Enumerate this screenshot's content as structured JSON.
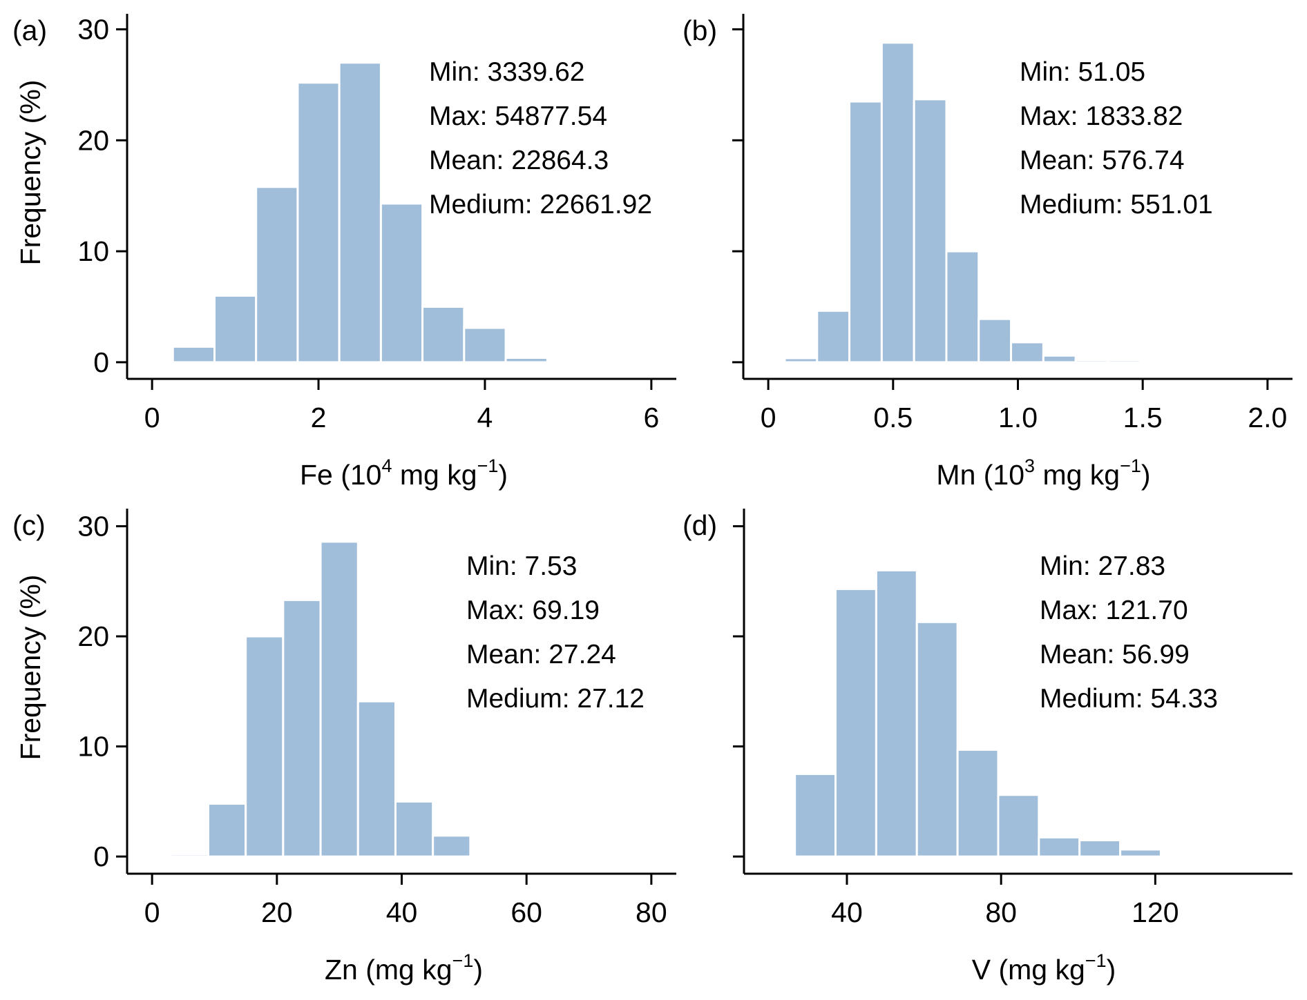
{
  "figure": {
    "bar_color": "#a0bdda",
    "axis_color": "#000000",
    "background": "#ffffff"
  },
  "chart_data": [
    {
      "type": "bar",
      "subtype": "histogram",
      "panel_label": "(a)",
      "xlabel": {
        "prefix": "Fe (10",
        "sup1": "4",
        "mid": " mg kg",
        "sup2": "−1",
        "suffix": ")"
      },
      "ylabel": "Frequency (%)",
      "xlim": [
        -0.3,
        6.3
      ],
      "ylim": [
        -1.5,
        31.4
      ],
      "xticks": [
        0,
        2,
        4,
        6
      ],
      "xtick_labels": [
        "0",
        "2",
        "4",
        "6"
      ],
      "yticks": [
        0,
        10,
        20,
        30
      ],
      "ytick_labels": [
        "0",
        "10",
        "20",
        "30"
      ],
      "show_ytick_labels": true,
      "bin_start": 0.25,
      "bin_width": 0.5,
      "values": [
        1.4,
        6.0,
        15.8,
        25.2,
        27.0,
        14.3,
        5.0,
        3.1,
        0.4
      ],
      "stats": [
        "Min: 3339.62",
        "Max: 54877.54",
        "Mean: 22864.3",
        "Medium: 22661.92"
      ]
    },
    {
      "type": "bar",
      "subtype": "histogram",
      "panel_label": "(b)",
      "xlabel": {
        "prefix": "Mn (10",
        "sup1": "3",
        "mid": " mg kg",
        "sup2": "−1",
        "suffix": ")"
      },
      "ylabel": "",
      "xlim": [
        -0.1,
        2.1
      ],
      "ylim": [
        -1.5,
        31.4
      ],
      "xticks": [
        0,
        0.5,
        1.0,
        1.5,
        2.0
      ],
      "xtick_labels": [
        "0",
        "0.5",
        "1.0",
        "1.5",
        "2.0"
      ],
      "yticks": [
        0,
        10,
        20,
        30
      ],
      "ytick_labels": [
        "",
        "",
        "",
        ""
      ],
      "show_ytick_labels": false,
      "bin_start": 0.066,
      "bin_width": 0.1295,
      "values": [
        0.37,
        4.64,
        23.5,
        28.8,
        23.7,
        10.0,
        3.9,
        1.8,
        0.6,
        0.2,
        0.2
      ],
      "stats": [
        "Min: 51.05",
        "Max: 1833.82",
        "Mean: 576.74",
        "Medium: 551.01"
      ]
    },
    {
      "type": "bar",
      "subtype": "histogram",
      "panel_label": "(c)",
      "xlabel": {
        "prefix": "Zn (mg kg",
        "sup1": "",
        "mid": "",
        "sup2": "−1",
        "suffix": ")"
      },
      "ylabel": "Frequency (%)",
      "xlim": [
        -4,
        84
      ],
      "ylim": [
        -1.56,
        31.6
      ],
      "xticks": [
        0,
        20,
        40,
        60,
        80
      ],
      "xtick_labels": [
        "0",
        "20",
        "40",
        "60",
        "80"
      ],
      "yticks": [
        0,
        10,
        20,
        30
      ],
      "ytick_labels": [
        "0",
        "10",
        "20",
        "30"
      ],
      "show_ytick_labels": true,
      "bin_start": 3,
      "bin_width": 6,
      "values": [
        0.2,
        4.8,
        20.0,
        23.3,
        28.6,
        14.1,
        5.0,
        1.9
      ],
      "stats": [
        "Min: 7.53",
        "Max: 69.19",
        "Mean: 27.24",
        "Medium: 27.12"
      ]
    },
    {
      "type": "bar",
      "subtype": "histogram",
      "panel_label": "(d)",
      "xlabel": {
        "prefix": "V (mg kg",
        "sup1": "",
        "mid": "",
        "sup2": "−1",
        "suffix": ")"
      },
      "ylabel": "",
      "xlim": [
        13.3,
        155.6
      ],
      "ylim": [
        -1.56,
        31.6
      ],
      "xticks": [
        40,
        80,
        120
      ],
      "xtick_labels": [
        "40",
        "80",
        "120"
      ],
      "yticks": [
        0,
        10,
        20,
        30
      ],
      "ytick_labels": [
        "",
        "",
        "",
        ""
      ],
      "show_ytick_labels": false,
      "bin_start": 26.5,
      "bin_width": 10.55,
      "values": [
        7.5,
        24.3,
        26.0,
        21.3,
        9.7,
        5.6,
        1.74,
        1.48,
        0.64,
        0.1
      ],
      "stats": [
        "Min: 27.83",
        "Max: 121.70",
        "Mean: 56.99",
        "Medium: 54.33"
      ]
    }
  ]
}
